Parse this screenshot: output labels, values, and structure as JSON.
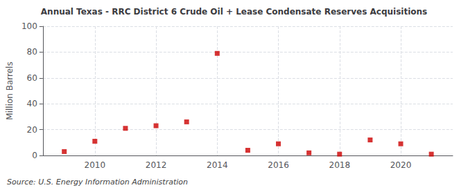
{
  "chart_data": {
    "type": "scatter",
    "title": "Annual Texas - RRC District 6 Crude Oil + Lease Condensate Reserves Acquisitions",
    "ylabel": "Million Barrels",
    "source": "Source: U.S. Energy Information Administration",
    "x": [
      2009,
      2010,
      2011,
      2012,
      2013,
      2014,
      2015,
      2016,
      2017,
      2018,
      2019,
      2020,
      2021
    ],
    "values": [
      3.0,
      11.0,
      21.0,
      23.0,
      26.0,
      79.0,
      4.0,
      9.0,
      2.0,
      1.0,
      12.0,
      9.0,
      1.0
    ],
    "color": "#cc0000",
    "marker": "square",
    "xlim": [
      2008.3,
      2021.7
    ],
    "xticks": [
      2010,
      2012,
      2014,
      2016,
      2018,
      2020
    ],
    "ylim": [
      0,
      100
    ],
    "yticks": [
      0,
      20,
      40,
      60,
      80,
      100
    ],
    "grid": true
  }
}
